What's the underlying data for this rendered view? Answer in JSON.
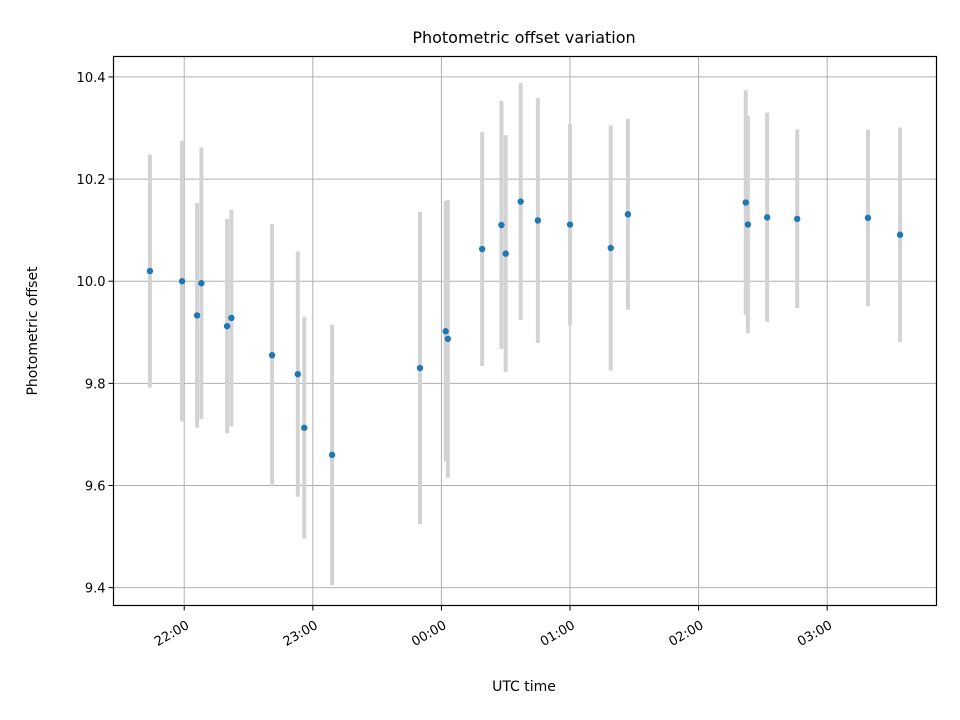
{
  "chart_data": {
    "type": "scatter",
    "title": "Photometric offset variation",
    "xlabel": "UTC time",
    "ylabel": "Photometric offset",
    "grid": true,
    "x_range": [
      "21:27",
      "03:51"
    ],
    "ylim": [
      9.365,
      10.44
    ],
    "x_ticks": [
      "22:00",
      "23:00",
      "00:00",
      "01:00",
      "02:00",
      "03:00"
    ],
    "y_ticks": [
      "9.4",
      "9.6",
      "9.8",
      "10.0",
      "10.2",
      "10.4"
    ],
    "colors": {
      "points": "#1f77b4",
      "errorbars": "#d3d3d3",
      "grid": "#b0b0b0"
    },
    "points": [
      {
        "x": "21:44",
        "y": 10.02,
        "err": 0.228
      },
      {
        "x": "21:59",
        "y": 10.0,
        "err": 0.275
      },
      {
        "x": "22:06",
        "y": 9.933,
        "err": 0.22
      },
      {
        "x": "22:08",
        "y": 9.996,
        "err": 0.266
      },
      {
        "x": "22:20",
        "y": 9.912,
        "err": 0.21
      },
      {
        "x": "22:22",
        "y": 9.928,
        "err": 0.212
      },
      {
        "x": "22:41",
        "y": 9.855,
        "err": 0.257
      },
      {
        "x": "22:53",
        "y": 9.818,
        "err": 0.24
      },
      {
        "x": "22:56",
        "y": 9.713,
        "err": 0.217
      },
      {
        "x": "23:09",
        "y": 9.66,
        "err": 0.255
      },
      {
        "x": "23:50",
        "y": 9.83,
        "err": 0.306
      },
      {
        "x": "00:02",
        "y": 9.902,
        "err": 0.255
      },
      {
        "x": "00:03",
        "y": 9.887,
        "err": 0.272
      },
      {
        "x": "00:19",
        "y": 10.063,
        "err": 0.229
      },
      {
        "x": "00:28",
        "y": 10.11,
        "err": 0.243
      },
      {
        "x": "00:30",
        "y": 10.054,
        "err": 0.232
      },
      {
        "x": "00:37",
        "y": 10.156,
        "err": 0.232
      },
      {
        "x": "00:45",
        "y": 10.119,
        "err": 0.24
      },
      {
        "x": "01:00",
        "y": 10.111,
        "err": 0.197
      },
      {
        "x": "01:19",
        "y": 10.065,
        "err": 0.24
      },
      {
        "x": "01:27",
        "y": 10.131,
        "err": 0.187
      },
      {
        "x": "02:22",
        "y": 10.154,
        "err": 0.22
      },
      {
        "x": "02:23",
        "y": 10.111,
        "err": 0.213
      },
      {
        "x": "02:32",
        "y": 10.125,
        "err": 0.205
      },
      {
        "x": "02:46",
        "y": 10.122,
        "err": 0.175
      },
      {
        "x": "03:19",
        "y": 10.124,
        "err": 0.173
      },
      {
        "x": "03:34",
        "y": 10.091,
        "err": 0.21
      }
    ]
  }
}
